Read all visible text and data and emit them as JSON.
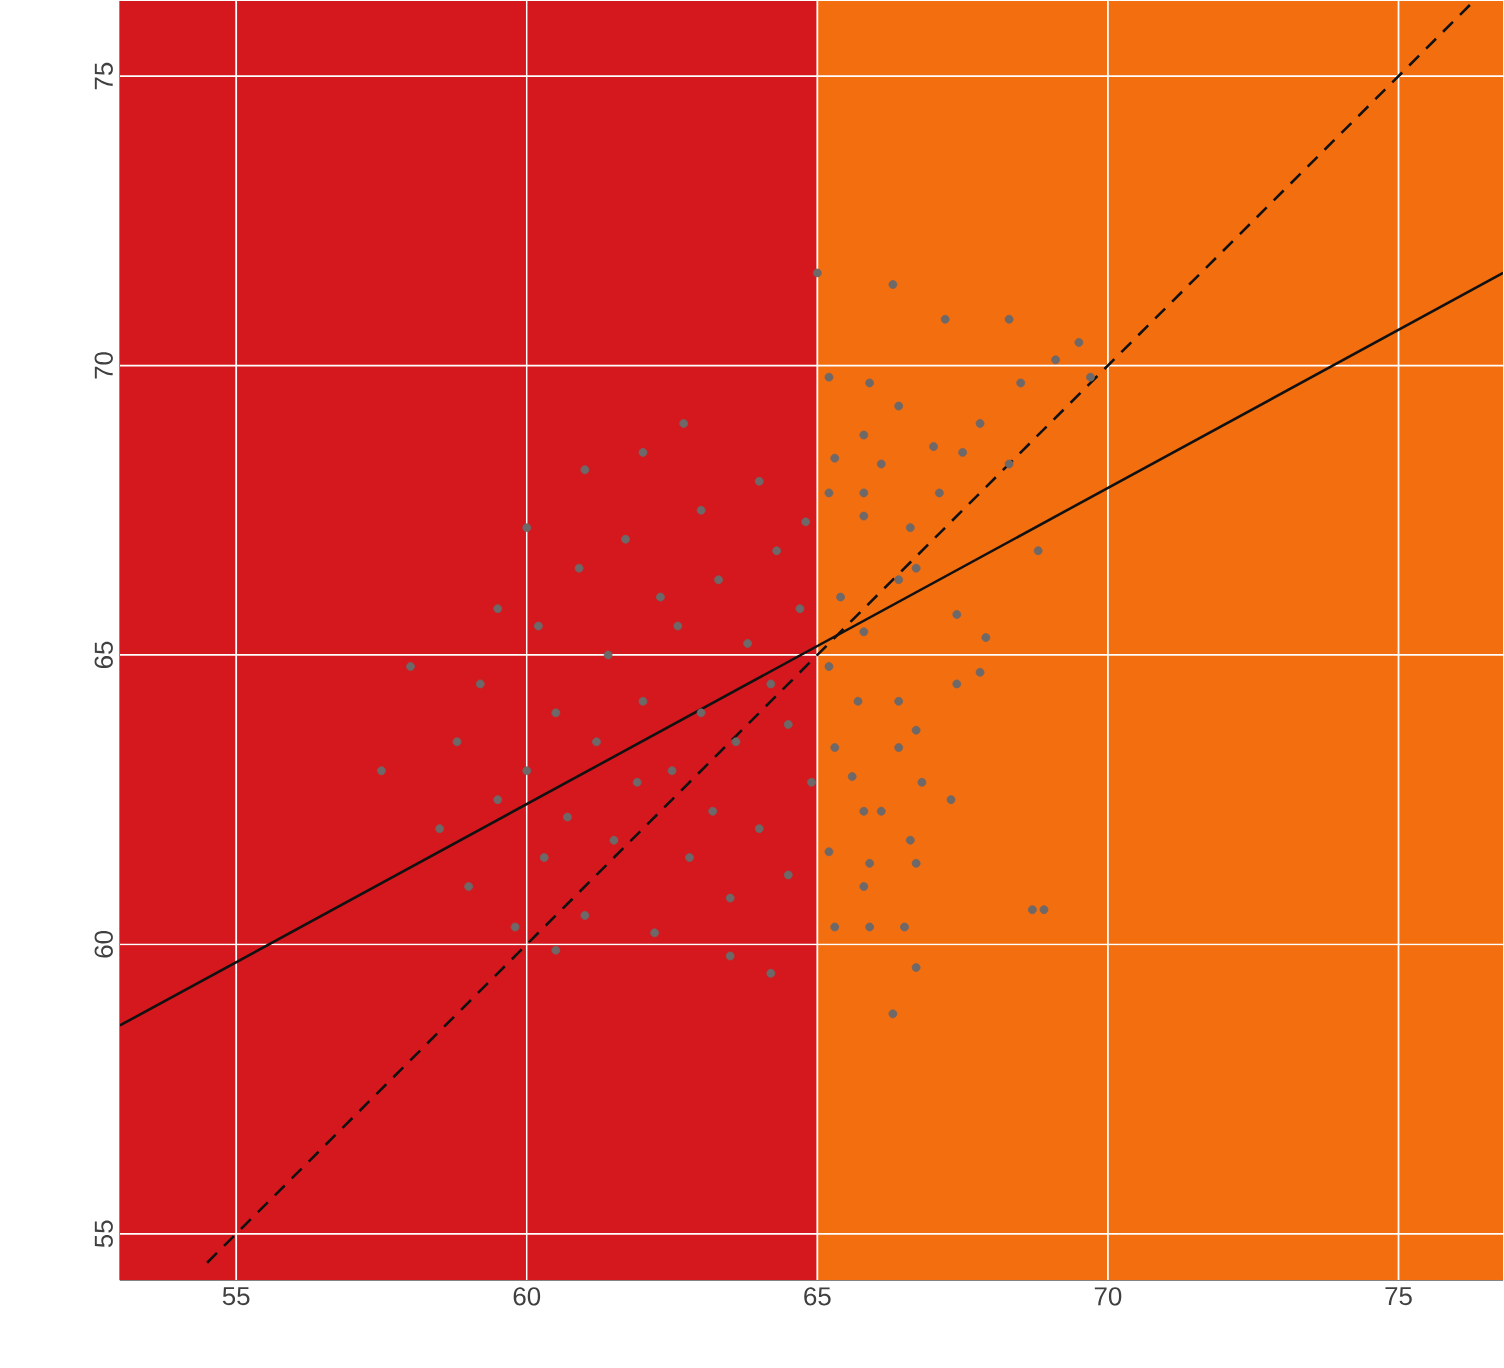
{
  "chart_data": {
    "type": "scatter",
    "xlim": [
      53,
      76.8
    ],
    "ylim": [
      54.2,
      76.3
    ],
    "xticks": [
      55,
      60,
      65,
      70,
      75
    ],
    "yticks": [
      55,
      60,
      65,
      70,
      75
    ],
    "grid": true,
    "bands": [
      {
        "axis": "x",
        "from": 53,
        "to": 65,
        "color": "#d5181e"
      },
      {
        "axis": "x",
        "from": 65,
        "to": 76.8,
        "color": "#f26e0f"
      }
    ],
    "series": [
      {
        "type": "scatter",
        "marker": "circle",
        "color": "#6e6868",
        "x": [
          58.5,
          58.8,
          59,
          59.2,
          59.5,
          59.8,
          60,
          60.2,
          60.3,
          60.5,
          60.7,
          60.9,
          61,
          61.2,
          61.4,
          61.5,
          61.7,
          61.9,
          62,
          62.2,
          62.3,
          62.5,
          62.6,
          62.8,
          63,
          63,
          63.2,
          63.3,
          63.5,
          63.6,
          63.8,
          64,
          64,
          64.2,
          64.3,
          64.5,
          64.5,
          64.7,
          64.8,
          64.9,
          61,
          62,
          60,
          59.5,
          57.5,
          58,
          63.5,
          64.2,
          60.5,
          62.7,
          65.0,
          66.3,
          67.2,
          68.3,
          69.5,
          69.1,
          65.2,
          65.9,
          68.5,
          66.4,
          67.8,
          67.0,
          65.8,
          65.3,
          67.5,
          66.1,
          65.2,
          67.1,
          65.8,
          65.8,
          66.6,
          68.3,
          68.8,
          66.4,
          66.7,
          65.4,
          67.4,
          65.8,
          67.9,
          65.2,
          65.7,
          66.4,
          67.4,
          67.8,
          65.3,
          66.4,
          66.7,
          65.6,
          66.8,
          67.3,
          65.8,
          66.1,
          66.6,
          65.2,
          65.9,
          66.7,
          65.8,
          68.7,
          65.3,
          65.9,
          66.5,
          66.7,
          66.3,
          69.7,
          68.9
        ],
        "values": [
          62,
          63.5,
          61,
          64.5,
          62.5,
          60.3,
          63,
          65.5,
          61.5,
          64,
          62.2,
          66.5,
          60.5,
          63.5,
          65,
          61.8,
          67,
          62.8,
          64.2,
          60.2,
          66,
          63,
          65.5,
          61.5,
          67.5,
          64,
          62.3,
          66.3,
          60.8,
          63.5,
          65.2,
          68,
          62,
          64.5,
          66.8,
          61.2,
          63.8,
          65.8,
          67.3,
          62.8,
          68.2,
          68.5,
          67.2,
          65.8,
          63,
          64.8,
          59.8,
          59.5,
          59.9,
          69,
          71.6,
          71.4,
          70.8,
          70.8,
          70.4,
          70.1,
          69.8,
          69.7,
          69.7,
          69.3,
          69,
          68.6,
          68.8,
          68.4,
          68.5,
          68.3,
          67.8,
          67.8,
          67.8,
          67.4,
          67.2,
          68.3,
          66.8,
          66.3,
          66.5,
          66.0,
          65.7,
          65.4,
          65.3,
          64.8,
          64.2,
          64.2,
          64.5,
          64.7,
          63.4,
          63.4,
          63.7,
          62.9,
          62.8,
          62.5,
          62.3,
          62.3,
          61.8,
          61.6,
          61.4,
          61.4,
          61.0,
          60.6,
          60.3,
          60.3,
          60.3,
          59.6,
          58.8,
          69.8,
          60.6
        ]
      },
      {
        "type": "line",
        "color": "#111111",
        "marker": "none",
        "line_style": "solid",
        "x": [
          53,
          76.8
        ],
        "values": [
          58.6,
          71.6
        ]
      },
      {
        "type": "line",
        "color": "#111111",
        "marker": "none",
        "line_style": "dashed",
        "x": [
          54.5,
          76.3
        ],
        "values": [
          54.5,
          76.3
        ]
      }
    ]
  }
}
